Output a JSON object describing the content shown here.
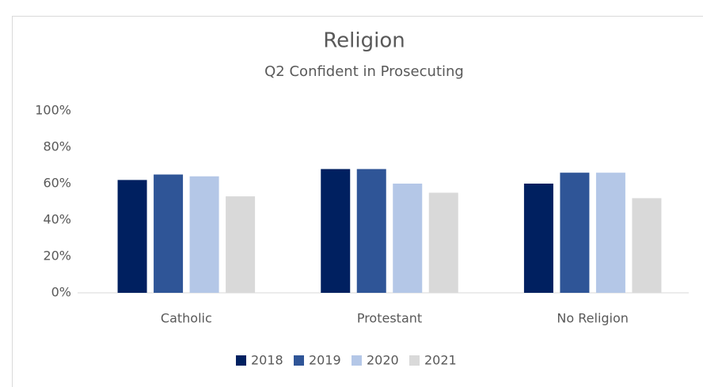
{
  "chart_data": {
    "type": "bar",
    "title": "Religion",
    "subtitle": "Q2 Confident in Prosecuting",
    "categories": [
      "Catholic",
      "Protestant",
      "No Religion"
    ],
    "series": [
      {
        "name": "2018",
        "color": "#002060",
        "values": [
          62,
          68,
          60
        ]
      },
      {
        "name": "2019",
        "color": "#2f5597",
        "values": [
          65,
          68,
          66
        ]
      },
      {
        "name": "2020",
        "color": "#b4c7e7",
        "values": [
          64,
          60,
          66
        ]
      },
      {
        "name": "2021",
        "color": "#d9d9d9",
        "values": [
          53,
          55,
          52
        ]
      }
    ],
    "ylim": [
      0,
      100
    ],
    "yticks": [
      {
        "value": 0,
        "label": "0%"
      },
      {
        "value": 20,
        "label": "20%"
      },
      {
        "value": 40,
        "label": "40%"
      },
      {
        "value": 60,
        "label": "60%"
      },
      {
        "value": 80,
        "label": "80%"
      },
      {
        "value": 100,
        "label": "100%"
      }
    ],
    "grid": false,
    "legend": "bottom"
  }
}
